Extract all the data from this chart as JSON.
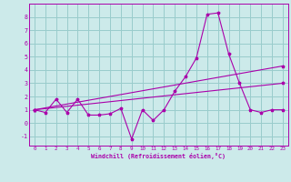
{
  "xlabel": "Windchill (Refroidissement éolien,°C)",
  "background_color": "#cceaea",
  "line_color": "#aa00aa",
  "grid_color": "#99cccc",
  "xlim": [
    -0.5,
    23.5
  ],
  "ylim": [
    -1.7,
    9.0
  ],
  "yticks": [
    -1,
    0,
    1,
    2,
    3,
    4,
    5,
    6,
    7,
    8
  ],
  "xticks": [
    0,
    1,
    2,
    3,
    4,
    5,
    6,
    7,
    8,
    9,
    10,
    11,
    12,
    13,
    14,
    15,
    16,
    17,
    18,
    19,
    20,
    21,
    22,
    23
  ],
  "series1_x": [
    0,
    1,
    2,
    3,
    4,
    5,
    6,
    7,
    8,
    9,
    10,
    11,
    12,
    13,
    14,
    15,
    16,
    17,
    18,
    19,
    20,
    21,
    22,
    23
  ],
  "series1_y": [
    1.0,
    0.8,
    1.8,
    0.8,
    1.8,
    0.6,
    0.6,
    0.7,
    1.1,
    -1.2,
    1.0,
    0.2,
    1.0,
    2.4,
    3.5,
    4.9,
    8.2,
    8.3,
    5.2,
    3.0,
    1.0,
    0.8,
    1.0,
    1.0
  ],
  "series2_x": [
    0,
    23
  ],
  "series2_y": [
    1.0,
    4.3
  ],
  "series3_x": [
    0,
    23
  ],
  "series3_y": [
    1.0,
    3.0
  ]
}
